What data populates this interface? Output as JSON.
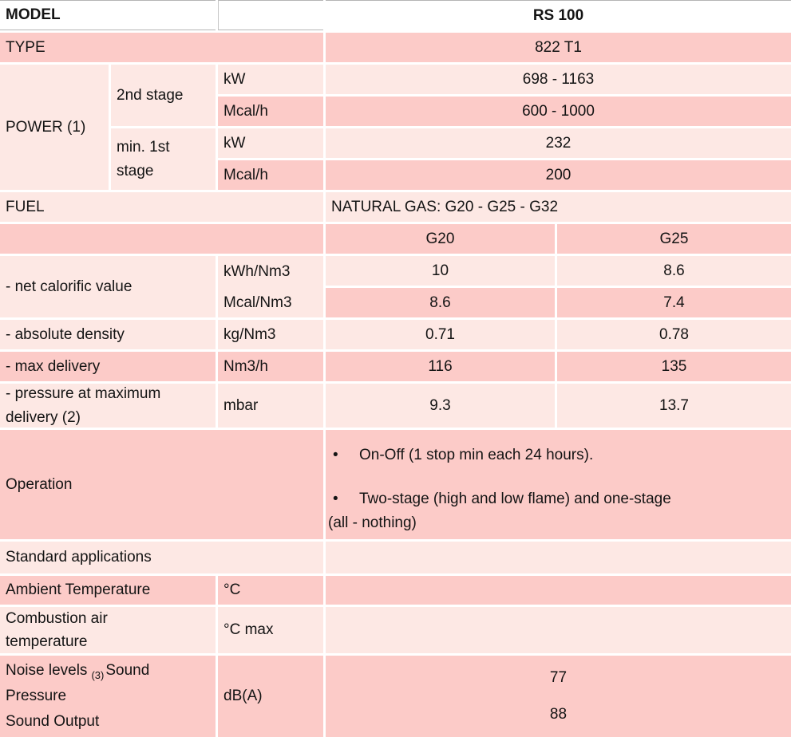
{
  "colors": {
    "row_dark": "#fccbc8",
    "row_light": "#fde8e4",
    "top_rule_gray": "#b5b5b5"
  },
  "model": {
    "label": "MODEL",
    "value": "RS 100"
  },
  "type": {
    "label": "TYPE",
    "value": "822 T1"
  },
  "power": {
    "label": "POWER (1)",
    "stage2_label": "2nd stage",
    "stage1_label": "min. 1st stage",
    "rows": [
      {
        "unit": "kW",
        "value": "698 - 1163"
      },
      {
        "unit": "Mcal/h",
        "value": "600 - 1000"
      },
      {
        "unit": "kW",
        "value": "232"
      },
      {
        "unit": "Mcal/h",
        "value": "200"
      }
    ]
  },
  "fuel": {
    "label": "FUEL",
    "value": "NATURAL GAS: G20 - G25 - G32"
  },
  "gas": {
    "columns": [
      "G20",
      "G25"
    ],
    "ncv": {
      "label": "- net calorific value",
      "units": [
        "kWh/Nm3",
        "Mcal/Nm3"
      ],
      "g20": [
        "10",
        "8.6"
      ],
      "g25": [
        "8.6",
        "7.4"
      ]
    },
    "density": {
      "label": "- absolute density",
      "unit": "kg/Nm3",
      "g20": "0.71",
      "g25": "0.78"
    },
    "delivery": {
      "label": "- max delivery",
      "unit": "Nm3/h",
      "g20": "116",
      "g25": "135"
    },
    "pressure": {
      "label": "- pressure at maximum delivery (2)",
      "unit": "mbar",
      "g20": "9.3",
      "g25": "13.7"
    }
  },
  "operation": {
    "label": "Operation",
    "items": [
      {
        "bullet": "•",
        "text": "On-Off (1 stop min each 24 hours)."
      },
      {
        "bullet": "•",
        "text": "Two-stage (high and low flame) and one-stage",
        "text2": "(all - nothing)"
      }
    ]
  },
  "standard_applications": {
    "label": "Standard applications",
    "value": ""
  },
  "ambient_temperature": {
    "label": "Ambient Temperature",
    "unit": "°C",
    "value": ""
  },
  "combustion_air_temperature": {
    "label": "Combustion air temperature",
    "unit": "°C max",
    "value": ""
  },
  "noise": {
    "label_main": "Noise levels",
    "label_sub": "(3)",
    "label_rest": "Sound Pressure",
    "label_line2": "Sound Output",
    "unit": "dB(A)",
    "sound_pressure": "77",
    "sound_output": "88"
  }
}
